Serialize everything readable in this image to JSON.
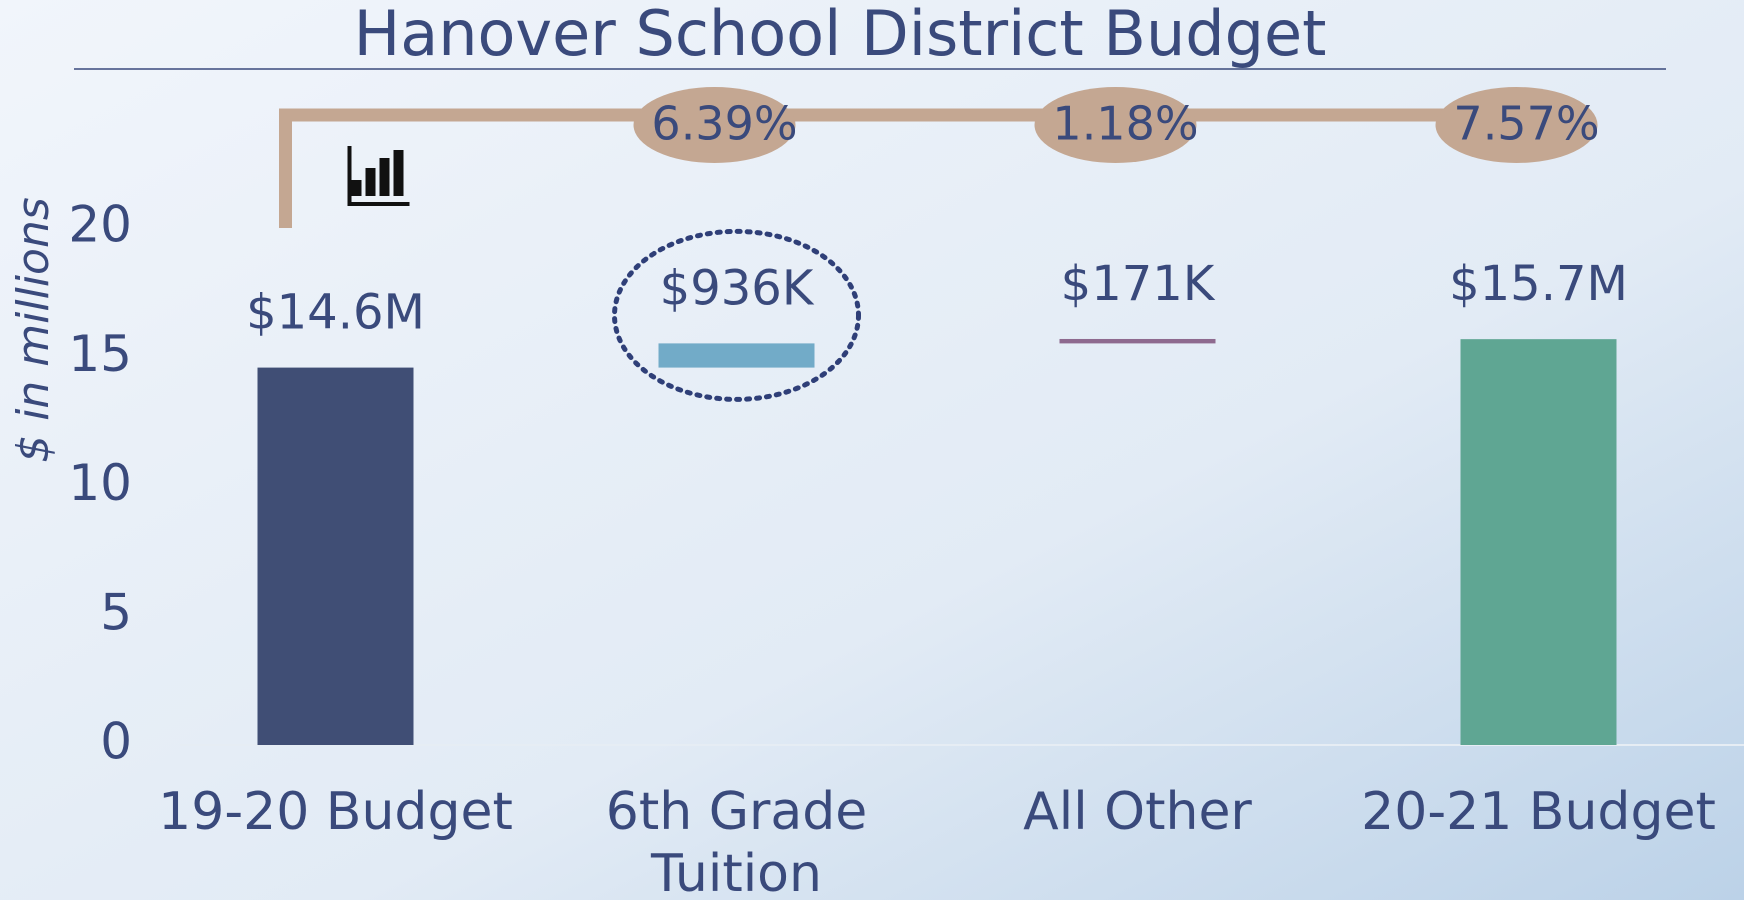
{
  "chart_data": {
    "type": "waterfall",
    "title": "Hanover School District Budget",
    "ylabel": "$ in millions",
    "categories": [
      "19-20 Budget",
      "6th Grade Tuition",
      "All Other",
      "20-21 Budget"
    ],
    "values": [
      14.6,
      0.936,
      0.171,
      15.7
    ],
    "value_labels": [
      "$14.6M",
      "$936K",
      "$171K",
      "$15.7M"
    ],
    "measures": [
      "total",
      "relative",
      "relative",
      "total"
    ],
    "colors": [
      "#404e75",
      "#72abc8",
      "#8e6a8f",
      "#5fa693"
    ],
    "annotations": [
      "6.39%",
      "1.18%",
      "7.57%"
    ],
    "ylim": [
      0,
      20
    ],
    "yticks": [
      0,
      5,
      10,
      15,
      20
    ]
  }
}
